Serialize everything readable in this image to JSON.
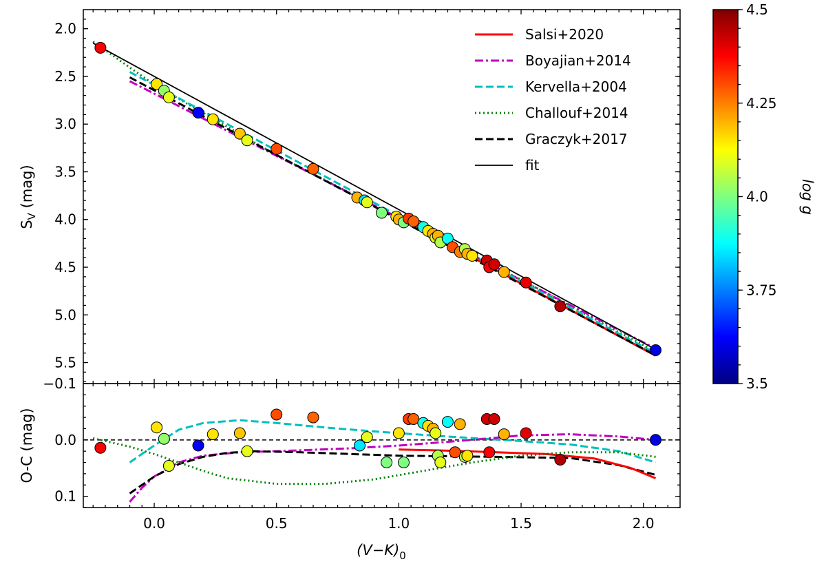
{
  "chart_data": {
    "type": "scatter",
    "colorbar": {
      "label": "log g",
      "range": [
        3.5,
        4.5
      ],
      "ticks": [
        "3.5",
        "3.75",
        "4.0",
        "4.25",
        "4.5"
      ],
      "colormap": "jet"
    },
    "top_panel": {
      "xlabel": "(V−K)0",
      "ylabel": "SV (mag)",
      "xlim": [
        -0.29,
        2.15
      ],
      "ylim": [
        5.72,
        1.8
      ],
      "y_inverted": true,
      "yticks": [
        "2.0",
        "2.5",
        "3.0",
        "3.5",
        "4.0",
        "4.5",
        "5.0",
        "5.5"
      ],
      "legend_position": "top-right",
      "series": [
        {
          "name": "Salsi+2020",
          "style": "solid",
          "color": "#ff0000",
          "x": [
            1.0,
            2.05
          ],
          "y": [
            3.983,
            5.428
          ]
        },
        {
          "name": "Boyajian+2014",
          "style": "dashdot",
          "color": "#bf00bf",
          "x": [
            -0.1,
            2.05
          ],
          "y": [
            2.55,
            5.353
          ]
        },
        {
          "name": "Kervella+2004",
          "style": "dashed",
          "color": "#00bfbf",
          "x": [
            -0.1,
            2.05
          ],
          "y": [
            2.453,
            5.403
          ]
        },
        {
          "name": "Challouf+2014",
          "style": "dotted",
          "color": "#008000",
          "x": [
            -0.25,
            0.0,
            0.5,
            1.0,
            1.5,
            2.05
          ],
          "y": [
            2.136,
            2.586,
            3.326,
            3.983,
            4.631,
            5.386
          ]
        },
        {
          "name": "Graczyk+2017",
          "style": "dashed",
          "color": "#000000",
          "x": [
            -0.1,
            2.05
          ],
          "y": [
            2.51,
            5.423
          ]
        },
        {
          "name": "fit",
          "style": "solid-thin",
          "color": "#000000",
          "x": [
            -0.25,
            2.05
          ],
          "y": [
            2.151,
            5.362
          ]
        }
      ],
      "points": [
        {
          "x": -0.22,
          "y": 2.2,
          "logg": 4.38
        },
        {
          "x": 0.01,
          "y": 2.58,
          "logg": 4.15
        },
        {
          "x": 0.04,
          "y": 2.65,
          "logg": 4.02
        },
        {
          "x": 0.06,
          "y": 2.72,
          "logg": 4.1
        },
        {
          "x": 0.18,
          "y": 2.88,
          "logg": 3.62
        },
        {
          "x": 0.24,
          "y": 2.95,
          "logg": 4.15
        },
        {
          "x": 0.35,
          "y": 3.1,
          "logg": 4.18
        },
        {
          "x": 0.38,
          "y": 3.17,
          "logg": 4.1
        },
        {
          "x": 0.5,
          "y": 3.26,
          "logg": 4.3
        },
        {
          "x": 0.65,
          "y": 3.47,
          "logg": 4.28
        },
        {
          "x": 0.83,
          "y": 3.77,
          "logg": 4.2
        },
        {
          "x": 0.86,
          "y": 3.8,
          "logg": 3.85
        },
        {
          "x": 0.87,
          "y": 3.82,
          "logg": 4.1
        },
        {
          "x": 0.93,
          "y": 3.93,
          "logg": 4.0
        },
        {
          "x": 0.99,
          "y": 3.97,
          "logg": 4.15
        },
        {
          "x": 1.0,
          "y": 4.0,
          "logg": 4.2
        },
        {
          "x": 1.02,
          "y": 4.03,
          "logg": 4.0
        },
        {
          "x": 1.04,
          "y": 3.99,
          "logg": 4.32
        },
        {
          "x": 1.06,
          "y": 4.02,
          "logg": 4.28
        },
        {
          "x": 1.1,
          "y": 4.08,
          "logg": 3.9
        },
        {
          "x": 1.12,
          "y": 4.12,
          "logg": 4.15
        },
        {
          "x": 1.14,
          "y": 4.15,
          "logg": 4.2
        },
        {
          "x": 1.15,
          "y": 4.19,
          "logg": 4.1
        },
        {
          "x": 1.16,
          "y": 4.17,
          "logg": 4.2
        },
        {
          "x": 1.17,
          "y": 4.24,
          "logg": 4.05
        },
        {
          "x": 1.2,
          "y": 4.2,
          "logg": 3.88
        },
        {
          "x": 1.22,
          "y": 4.29,
          "logg": 4.3
        },
        {
          "x": 1.25,
          "y": 4.34,
          "logg": 4.25
        },
        {
          "x": 1.27,
          "y": 4.31,
          "logg": 4.05
        },
        {
          "x": 1.28,
          "y": 4.36,
          "logg": 4.2
        },
        {
          "x": 1.3,
          "y": 4.38,
          "logg": 4.15
        },
        {
          "x": 1.36,
          "y": 4.43,
          "logg": 4.42
        },
        {
          "x": 1.37,
          "y": 4.5,
          "logg": 4.38
        },
        {
          "x": 1.39,
          "y": 4.47,
          "logg": 4.42
        },
        {
          "x": 1.43,
          "y": 4.55,
          "logg": 4.2
        },
        {
          "x": 1.52,
          "y": 4.66,
          "logg": 4.4
        },
        {
          "x": 1.66,
          "y": 4.91,
          "logg": 4.45
        },
        {
          "x": 2.05,
          "y": 5.37,
          "logg": 3.6
        }
      ]
    },
    "bottom_panel": {
      "ylabel": "O-C (mag)",
      "xlabel": "(V−K)0",
      "xlim": [
        -0.29,
        2.15
      ],
      "ylim": [
        0.12,
        -0.1
      ],
      "y_inverted": true,
      "yticks": [
        "−0.1",
        "0.0",
        "0.1"
      ],
      "xticks": [
        "0.0",
        "0.5",
        "1.0",
        "1.5",
        "2.0"
      ],
      "zero_line": "dashed",
      "curves": [
        {
          "name": "Kervella+2004",
          "x": [
            -0.1,
            0.0,
            0.1,
            0.2,
            0.35,
            0.5,
            0.7,
            0.9,
            1.0,
            1.2,
            1.5,
            1.7,
            1.9,
            2.05
          ],
          "y": [
            0.04,
            0.01,
            -0.018,
            -0.03,
            -0.035,
            -0.03,
            -0.022,
            -0.015,
            -0.012,
            -0.006,
            0.002,
            0.008,
            0.02,
            0.04
          ]
        },
        {
          "name": "Boyajian+2014",
          "x": [
            -0.1,
            -0.05,
            0.0,
            0.1,
            0.2,
            0.35,
            0.5,
            0.8,
            1.0,
            1.3,
            1.5,
            1.7,
            1.9,
            2.05
          ],
          "y": [
            0.11,
            0.085,
            0.065,
            0.04,
            0.028,
            0.022,
            0.02,
            0.015,
            0.01,
            0.0,
            -0.008,
            -0.01,
            -0.006,
            0.0
          ]
        },
        {
          "name": "Graczyk+2017",
          "x": [
            -0.1,
            0.0,
            0.1,
            0.2,
            0.3,
            0.4,
            0.6,
            1.0,
            1.4,
            1.7,
            1.9,
            2.05
          ],
          "y": [
            0.095,
            0.065,
            0.043,
            0.03,
            0.023,
            0.02,
            0.022,
            0.028,
            0.03,
            0.032,
            0.045,
            0.062
          ]
        },
        {
          "name": "Salsi+2020",
          "x": [
            1.0,
            1.2,
            1.4,
            1.6,
            1.8,
            1.95,
            2.05
          ],
          "y": [
            0.017,
            0.019,
            0.022,
            0.025,
            0.033,
            0.05,
            0.068
          ]
        },
        {
          "name": "Challouf+2014",
          "x": [
            -0.25,
            -0.1,
            0.0,
            0.1,
            0.2,
            0.3,
            0.5,
            0.7,
            0.9,
            1.1,
            1.3,
            1.5,
            1.7,
            1.9,
            2.05
          ],
          "y": [
            -0.003,
            0.012,
            0.025,
            0.04,
            0.055,
            0.068,
            0.078,
            0.078,
            0.07,
            0.055,
            0.04,
            0.028,
            0.022,
            0.022,
            0.03
          ]
        }
      ],
      "points": [
        {
          "x": -0.22,
          "y": 0.014,
          "logg": 4.38
        },
        {
          "x": 0.01,
          "y": -0.022,
          "logg": 4.15
        },
        {
          "x": 0.04,
          "y": -0.002,
          "logg": 4.02
        },
        {
          "x": 0.06,
          "y": 0.046,
          "logg": 4.1
        },
        {
          "x": 0.18,
          "y": 0.01,
          "logg": 3.62
        },
        {
          "x": 0.24,
          "y": -0.01,
          "logg": 4.15
        },
        {
          "x": 0.35,
          "y": -0.012,
          "logg": 4.18
        },
        {
          "x": 0.38,
          "y": 0.02,
          "logg": 4.1
        },
        {
          "x": 0.5,
          "y": -0.045,
          "logg": 4.3
        },
        {
          "x": 0.65,
          "y": -0.04,
          "logg": 4.28
        },
        {
          "x": 0.84,
          "y": 0.01,
          "logg": 3.85
        },
        {
          "x": 0.87,
          "y": -0.005,
          "logg": 4.1
        },
        {
          "x": 0.95,
          "y": 0.04,
          "logg": 4.0
        },
        {
          "x": 1.0,
          "y": -0.012,
          "logg": 4.15
        },
        {
          "x": 1.02,
          "y": 0.04,
          "logg": 4.0
        },
        {
          "x": 1.04,
          "y": -0.037,
          "logg": 4.32
        },
        {
          "x": 1.06,
          "y": -0.037,
          "logg": 4.28
        },
        {
          "x": 1.1,
          "y": -0.03,
          "logg": 3.9
        },
        {
          "x": 1.12,
          "y": -0.025,
          "logg": 4.15
        },
        {
          "x": 1.14,
          "y": -0.02,
          "logg": 4.2
        },
        {
          "x": 1.15,
          "y": -0.012,
          "logg": 4.1
        },
        {
          "x": 1.16,
          "y": 0.028,
          "logg": 4.05
        },
        {
          "x": 1.17,
          "y": 0.04,
          "logg": 4.1
        },
        {
          "x": 1.2,
          "y": -0.032,
          "logg": 3.88
        },
        {
          "x": 1.23,
          "y": 0.022,
          "logg": 4.3
        },
        {
          "x": 1.25,
          "y": -0.028,
          "logg": 4.2
        },
        {
          "x": 1.27,
          "y": 0.03,
          "logg": 4.05
        },
        {
          "x": 1.28,
          "y": 0.028,
          "logg": 4.15
        },
        {
          "x": 1.36,
          "y": -0.037,
          "logg": 4.42
        },
        {
          "x": 1.37,
          "y": 0.022,
          "logg": 4.38
        },
        {
          "x": 1.39,
          "y": -0.037,
          "logg": 4.42
        },
        {
          "x": 1.43,
          "y": -0.01,
          "logg": 4.2
        },
        {
          "x": 1.52,
          "y": -0.012,
          "logg": 4.4
        },
        {
          "x": 1.66,
          "y": 0.035,
          "logg": 4.45
        },
        {
          "x": 2.05,
          "y": 0.0,
          "logg": 3.6
        }
      ]
    }
  }
}
